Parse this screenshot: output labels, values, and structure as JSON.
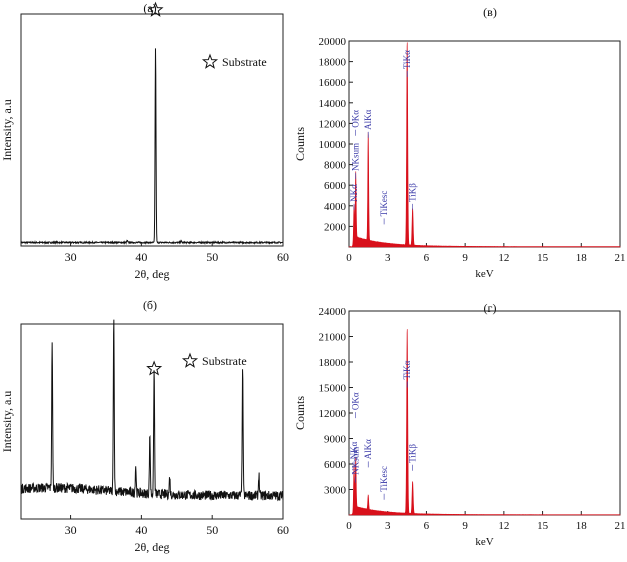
{
  "chart_data": [
    {
      "id": "a",
      "type": "line",
      "panel_label": "(a)",
      "xlabel": "2θ, deg",
      "ylabel": "Intensity, a.u",
      "xlim": [
        23,
        60
      ],
      "ylim": [
        0,
        100
      ],
      "xticks": [
        30,
        40,
        50,
        60
      ],
      "tick_labels": [
        "30",
        "40",
        "50",
        "60"
      ],
      "legend": {
        "symbol": "☆",
        "label": "Substrate"
      },
      "peak_markers": [
        {
          "x": 42.0,
          "y": 100,
          "symbol": "☆"
        }
      ],
      "peaks": [
        {
          "x": 42.0,
          "height": 84
        },
        {
          "x": 38.0,
          "height": 0.8
        },
        {
          "x": 45.6,
          "height": 0.7
        }
      ],
      "baseline": 1.5,
      "noise": 0.3
    },
    {
      "id": "b",
      "type": "line",
      "panel_label": "(б)",
      "xlabel": "2θ, deg",
      "ylabel": "Intensity, a.u",
      "xlim": [
        23,
        60
      ],
      "ylim": [
        0,
        100
      ],
      "xticks": [
        30,
        40,
        50,
        60
      ],
      "tick_labels": [
        "30",
        "40",
        "50",
        "60"
      ],
      "legend": {
        "symbol": "☆",
        "label": "Substrate"
      },
      "peak_markers": [
        {
          "x": 41.8,
          "y": 75,
          "symbol": "☆"
        }
      ],
      "peaks": [
        {
          "x": 27.4,
          "height": 76
        },
        {
          "x": 36.1,
          "height": 90
        },
        {
          "x": 39.2,
          "height": 14
        },
        {
          "x": 41.2,
          "height": 30
        },
        {
          "x": 41.8,
          "height": 64
        },
        {
          "x": 44.0,
          "height": 9
        },
        {
          "x": 54.3,
          "height": 64
        },
        {
          "x": 56.6,
          "height": 11
        }
      ],
      "baseline": 12,
      "noise": 2.5
    },
    {
      "id": "v",
      "type": "area",
      "panel_label": "(в)",
      "xlabel": "keV",
      "ylabel": "Counts",
      "xlim": [
        0,
        21
      ],
      "ylim": [
        0,
        20000
      ],
      "xticks": [
        0,
        3,
        6,
        9,
        12,
        15,
        18,
        21
      ],
      "xtick_labels": [
        "0",
        "3",
        "6",
        "9",
        "12",
        "15",
        "18",
        "21"
      ],
      "yticks": [
        2000,
        4000,
        6000,
        8000,
        10000,
        12000,
        14000,
        16000,
        18000,
        20000
      ],
      "ytick_labels": [
        "2000",
        "4000",
        "6000",
        "8000",
        "10000",
        "12000",
        "14000",
        "16000",
        "18000",
        "20000"
      ],
      "color": "#d8101b",
      "peaks": [
        {
          "x": 0.39,
          "height": 3600,
          "width": 0.05
        },
        {
          "x": 0.52,
          "height": 6600,
          "width": 0.05
        },
        {
          "x": 1.49,
          "height": 10600,
          "width": 0.05
        },
        {
          "x": 4.51,
          "height": 19800,
          "width": 0.06
        },
        {
          "x": 4.93,
          "height": 3600,
          "width": 0.06
        }
      ],
      "labels": [
        {
          "x": 0.39,
          "y": 3600,
          "text": "NKα"
        },
        {
          "x": 0.52,
          "y": 6600,
          "text": "NKsum"
        },
        {
          "x": 0.52,
          "y": 10800,
          "text": "OKα"
        },
        {
          "x": 1.49,
          "y": 10600,
          "text": "AlKα"
        },
        {
          "x": 2.72,
          "y": 2200,
          "text": "TiKesc"
        },
        {
          "x": 4.51,
          "y": 16500,
          "text": "TiKα"
        },
        {
          "x": 4.93,
          "y": 3600,
          "text": "TiKβ"
        }
      ]
    },
    {
      "id": "g",
      "type": "area",
      "panel_label": "(г)",
      "xlabel": "keV",
      "ylabel": "Counts",
      "xlim": [
        0,
        21
      ],
      "ylim": [
        0,
        24000
      ],
      "xticks": [
        0,
        3,
        6,
        9,
        12,
        15,
        18,
        21
      ],
      "xtick_labels": [
        "0",
        "3",
        "6",
        "9",
        "12",
        "15",
        "18",
        "21"
      ],
      "yticks": [
        3000,
        6000,
        9000,
        12000,
        15000,
        18000,
        21000,
        24000
      ],
      "ytick_labels": [
        "3000",
        "6000",
        "9000",
        "12000",
        "15000",
        "18000",
        "21000",
        "24000"
      ],
      "color": "#d8101b",
      "peaks": [
        {
          "x": 0.39,
          "height": 5600,
          "width": 0.05
        },
        {
          "x": 0.52,
          "height": 6000,
          "width": 0.05
        },
        {
          "x": 1.49,
          "height": 1700,
          "width": 0.05
        },
        {
          "x": 4.51,
          "height": 21800,
          "width": 0.06
        },
        {
          "x": 4.93,
          "height": 3800,
          "width": 0.06
        }
      ],
      "labels": [
        {
          "x": 0.39,
          "y": 5600,
          "text": "NKα"
        },
        {
          "x": 0.52,
          "y": 3800,
          "text": "NKsum"
        },
        {
          "x": 0.52,
          "y": 11400,
          "text": "OKα"
        },
        {
          "x": 1.49,
          "y": 5600,
          "text": "AlKα"
        },
        {
          "x": 2.72,
          "y": 1800,
          "text": "TiKesc"
        },
        {
          "x": 4.51,
          "y": 15000,
          "text": "TiKα"
        },
        {
          "x": 4.93,
          "y": 5200,
          "text": "TiKβ"
        }
      ]
    }
  ]
}
